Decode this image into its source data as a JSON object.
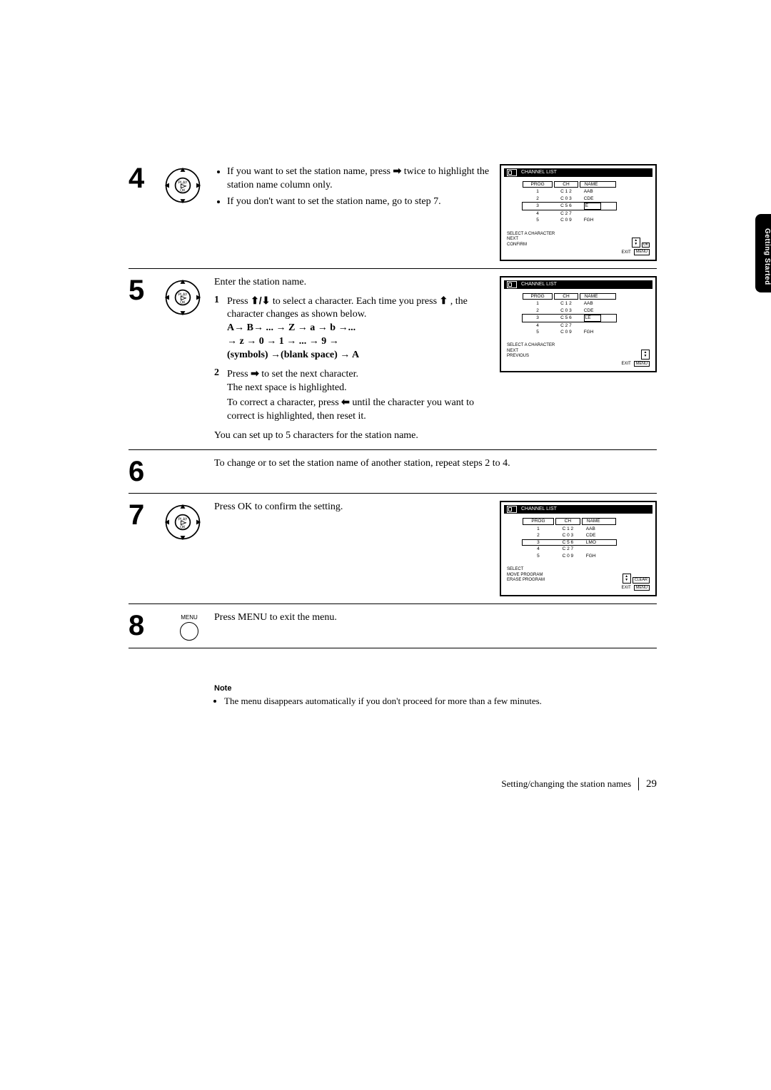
{
  "side_tab": "Getting Started",
  "steps": {
    "s4": {
      "num": "4",
      "bullet1_a": "If you want to set the station name, press ",
      "bullet1_b": " twice to highlight the station name column only.",
      "bullet2": "If you don't want to set the station name, go to step 7."
    },
    "s5": {
      "num": "5",
      "intro": "Enter the station name.",
      "sub1_n": "1",
      "sub1_a": "Press ",
      "sub1_b": " to select a  character. Each time you press ",
      "sub1_c": ", the character changes as shown below.",
      "seq1": "A→ B→ ... → Z → a  → b  →...",
      "seq2": "→ z → 0 → 1 → ... → 9 →",
      "seq3": "(symbols) →(blank space)  → A",
      "sub2_n": "2",
      "sub2_a": "Press ",
      "sub2_b": " to set the next character.",
      "sub2_c": "The next space is highlighted.",
      "sub2_d_a": "To correct a character, press ",
      "sub2_d_b": " until the character you want to correct is highlighted, then reset it.",
      "tail": "You can set up to 5 characters for the station name."
    },
    "s6": {
      "num": "6",
      "text": "To change or to set the station name of another station, repeat steps 2 to 4."
    },
    "s7": {
      "num": "7",
      "text": "Press OK to confirm the setting."
    },
    "s8": {
      "num": "8",
      "menu_label": "MENU",
      "text": "Press MENU to exit the menu."
    }
  },
  "screen_common": {
    "title": "CHANNEL LIST",
    "cols": {
      "prog": "PROG",
      "ch": "CH",
      "name": "NAME"
    },
    "exit": "EXIT",
    "menu": "MENU"
  },
  "screen4": {
    "rows": [
      {
        "p": "1",
        "ch": "C 1 2",
        "name": "AAB"
      },
      {
        "p": "2",
        "ch": "C 0 3",
        "name": "CDE"
      },
      {
        "p": "3",
        "ch": "C 5 6",
        "name": "E",
        "hl_row": true,
        "hl_name": true
      },
      {
        "p": "4",
        "ch": "C 2 7",
        "name": ""
      },
      {
        "p": "5",
        "ch": "C 0 9",
        "name": "FGH"
      }
    ],
    "footer": [
      "SELECT A CHARACTER",
      "NEXT",
      "CONFIRM"
    ],
    "ok": "OK"
  },
  "screen5": {
    "rows": [
      {
        "p": "1",
        "ch": "C 1 2",
        "name": "AAB"
      },
      {
        "p": "2",
        "ch": "C 0 3",
        "name": "CDE"
      },
      {
        "p": "3",
        "ch": "C 5 6",
        "name": "LE",
        "hl_row": true,
        "hl_name": true
      },
      {
        "p": "4",
        "ch": "C 2 7",
        "name": ""
      },
      {
        "p": "5",
        "ch": "C 0 9",
        "name": "FGH"
      }
    ],
    "footer": [
      "SELECT A CHARACTER",
      "NEXT",
      "PREVIOUS"
    ]
  },
  "screen7": {
    "rows": [
      {
        "p": "1",
        "ch": "C 1 2",
        "name": "AAB"
      },
      {
        "p": "2",
        "ch": "C 0 3",
        "name": "CDE"
      },
      {
        "p": "3",
        "ch": "C 5 6",
        "name": "LMO",
        "hl_row": true
      },
      {
        "p": "4",
        "ch": "C 2 7",
        "name": ""
      },
      {
        "p": "5",
        "ch": "C 0 9",
        "name": "FGH"
      }
    ],
    "footer": [
      "SELECT",
      "MOVE PROGRAM",
      "ERASE PROGRAM"
    ],
    "clear": "CLEAR"
  },
  "note": {
    "title": "Note",
    "item": "The menu disappears automatically if you don't proceed for more than a few minutes."
  },
  "footer": {
    "text": "Setting/changing the station names",
    "page": "29"
  },
  "glyphs": {
    "right": "➡",
    "left": "⬅",
    "up": "⬆",
    "down": "⬇",
    "updown": "⬆/⬇"
  }
}
